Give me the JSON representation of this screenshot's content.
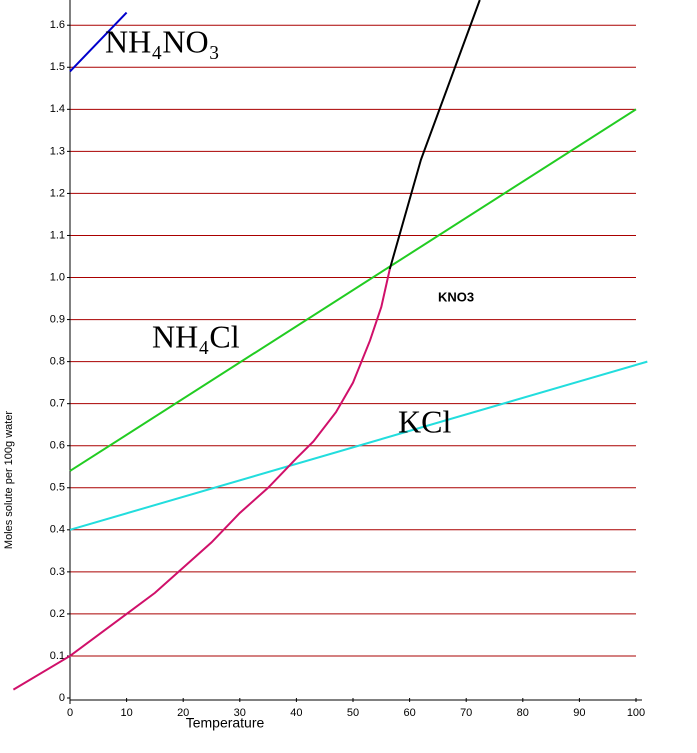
{
  "chart_data": {
    "type": "line",
    "x_label": "Temperature",
    "y_label": "Moles solute per 100g water",
    "xlim": [
      0,
      100
    ],
    "ylim": [
      0,
      1.66
    ],
    "xticks": [
      0,
      10,
      20,
      30,
      40,
      50,
      60,
      70,
      80,
      90,
      100
    ],
    "yticks": [
      0,
      0.1,
      0.2,
      0.3,
      0.4,
      0.5,
      0.6,
      0.7,
      0.8,
      0.9,
      {
        "value": 1,
        "label": "1.0"
      },
      1.1,
      1.2,
      1.3,
      1.4,
      1.5,
      1.6
    ],
    "grid": true,
    "grid_color": "#aa0000",
    "series": [
      {
        "name": "NH₄NO₃",
        "color": "#0000cc",
        "x": [
          0,
          10
        ],
        "values": [
          1.49,
          1.63
        ]
      },
      {
        "name": "NH₄Cl",
        "color": "#22cc22",
        "x": [
          0,
          100
        ],
        "values": [
          0.54,
          1.4
        ]
      },
      {
        "name": "KCl",
        "color": "#22dddd",
        "x": [
          0,
          102
        ],
        "values": [
          0.4,
          0.8
        ]
      },
      {
        "name": "KNO3",
        "color": "#d0106a",
        "x": [
          -10,
          0,
          5,
          10,
          15,
          20,
          25,
          30,
          35,
          40,
          43,
          47,
          50,
          53,
          55,
          56,
          56.5
        ],
        "values": [
          0.02,
          0.1,
          0.15,
          0.2,
          0.25,
          0.31,
          0.37,
          0.44,
          0.5,
          0.57,
          0.61,
          0.68,
          0.75,
          0.85,
          0.93,
          0.99,
          1.02
        ]
      },
      {
        "color": "#000000",
        "x": [
          56.5,
          62,
          72.4
        ],
        "values": [
          1.02,
          1.28,
          1.66
        ]
      }
    ]
  }
}
